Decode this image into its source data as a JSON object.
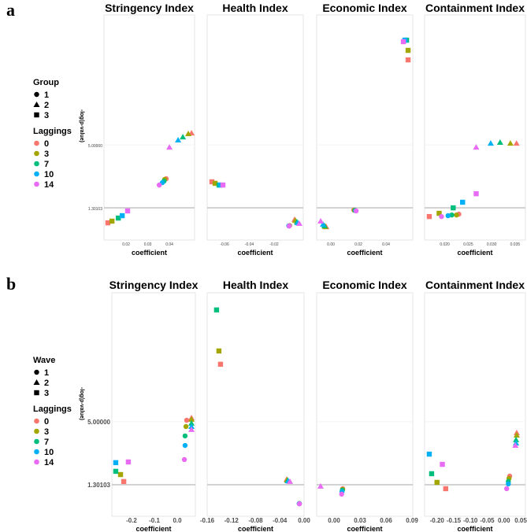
{
  "figure_labels": [
    "a",
    "b"
  ],
  "colors": {
    "0": "#F8766D",
    "3": "#A3A500",
    "7": "#00BF7D",
    "10": "#00B0F6",
    "14": "#E76BF3"
  },
  "shapes": {
    "1": "circle",
    "2": "triangle",
    "3": "square"
  },
  "legends": [
    {
      "shape_title": "Group",
      "shape_items": [
        "1",
        "2",
        "3"
      ],
      "color_title": "Laggings",
      "color_items": [
        "0",
        "3",
        "7",
        "10",
        "14"
      ]
    },
    {
      "shape_title": "Wave",
      "shape_items": [
        "1",
        "2",
        "3"
      ],
      "color_title": "Laggings",
      "color_items": [
        "0",
        "3",
        "7",
        "10",
        "14"
      ]
    }
  ],
  "point_fields": [
    "group",
    "lag",
    "x",
    "y"
  ],
  "chart_data": [
    {
      "type": "scatter",
      "row": 0,
      "title": "Stringency Index",
      "xlabel": "coefficient",
      "ylabel": "-log(p-value)",
      "xlim": [
        0.0098,
        0.0516
      ],
      "ylim": [
        -0.59,
        12.63
      ],
      "xticks": [
        0.02,
        0.03,
        0.04
      ],
      "xtick_labels": [
        "0.02",
        "0.03",
        "0.04"
      ],
      "yticks": [
        1.30103,
        5.0
      ],
      "ytick_labels": [
        "1.30103",
        "5.00000"
      ],
      "hline": 1.30103,
      "points": [
        [
          3,
          0,
          0.0116,
          0.42
        ],
        [
          3,
          3,
          0.0135,
          0.52
        ],
        [
          3,
          7,
          0.0164,
          0.7
        ],
        [
          3,
          10,
          0.0182,
          0.84
        ],
        [
          3,
          14,
          0.0207,
          1.12
        ],
        [
          1,
          0,
          0.0385,
          3.01
        ],
        [
          1,
          3,
          0.0378,
          2.97
        ],
        [
          1,
          7,
          0.0375,
          2.87
        ],
        [
          1,
          10,
          0.0367,
          2.78
        ],
        [
          1,
          14,
          0.0353,
          2.64
        ],
        [
          2,
          0,
          0.0502,
          5.69
        ],
        [
          2,
          3,
          0.0487,
          5.65
        ],
        [
          2,
          7,
          0.0462,
          5.46
        ],
        [
          2,
          10,
          0.044,
          5.28
        ],
        [
          2,
          14,
          0.04,
          4.86
        ]
      ]
    },
    {
      "type": "scatter",
      "row": 0,
      "title": "Health Index",
      "xlabel": "coefficient",
      "xlim": [
        -0.074,
        0.0035
      ],
      "ylim": [
        -0.59,
        12.63
      ],
      "xticks": [
        -0.06,
        -0.04,
        -0.02
      ],
      "xtick_labels": [
        "-0.06",
        "-0.04",
        "-0.02"
      ],
      "hline": 1.30103,
      "points": [
        [
          3,
          0,
          -0.0702,
          2.83
        ],
        [
          3,
          3,
          -0.0676,
          2.74
        ],
        [
          3,
          7,
          -0.0644,
          2.64
        ],
        [
          3,
          10,
          -0.0632,
          2.64
        ],
        [
          3,
          14,
          -0.0613,
          2.64
        ],
        [
          1,
          0,
          -0.0075,
          0.26
        ],
        [
          1,
          3,
          -0.0077,
          0.25
        ],
        [
          1,
          7,
          -0.0079,
          0.24
        ],
        [
          1,
          10,
          -0.0082,
          0.24
        ],
        [
          1,
          14,
          -0.0079,
          0.23
        ],
        [
          2,
          0,
          -0.0035,
          0.61
        ],
        [
          2,
          3,
          -0.0029,
          0.56
        ],
        [
          2,
          7,
          -0.0016,
          0.47
        ],
        [
          2,
          10,
          -0.001,
          0.42
        ],
        [
          2,
          14,
          0.0003,
          0.38
        ]
      ]
    },
    {
      "type": "scatter",
      "row": 0,
      "title": "Economic Index",
      "xlabel": "coefficient",
      "xlim": [
        -0.0103,
        0.0594
      ],
      "ylim": [
        -0.59,
        12.63
      ],
      "xticks": [
        0.0,
        0.02,
        0.04
      ],
      "xtick_labels": [
        "0.00",
        "0.02",
        "0.04"
      ],
      "hline": 1.30103,
      "points": [
        [
          2,
          0,
          -0.0034,
          0.19
        ],
        [
          2,
          3,
          -0.004,
          0.19
        ],
        [
          2,
          7,
          -0.0046,
          0.24
        ],
        [
          2,
          10,
          -0.0057,
          0.33
        ],
        [
          2,
          14,
          -0.0074,
          0.52
        ],
        [
          1,
          0,
          0.0166,
          1.17
        ],
        [
          1,
          3,
          0.017,
          1.16
        ],
        [
          1,
          7,
          0.0175,
          1.15
        ],
        [
          1,
          10,
          0.018,
          1.13
        ],
        [
          1,
          14,
          0.0183,
          1.12
        ],
        [
          3,
          0,
          0.056,
          9.99
        ],
        [
          3,
          3,
          0.056,
          10.55
        ],
        [
          3,
          7,
          0.0549,
          11.15
        ],
        [
          3,
          10,
          0.0537,
          11.15
        ],
        [
          3,
          14,
          0.0526,
          11.06
        ]
      ]
    },
    {
      "type": "scatter",
      "row": 0,
      "title": "Containment Index",
      "xlabel": "coefficient",
      "xlim": [
        0.0157,
        0.0372
      ],
      "ylim": [
        -0.59,
        12.63
      ],
      "xticks": [
        0.02,
        0.025,
        0.03,
        0.035
      ],
      "xtick_labels": [
        "0.020",
        "0.025",
        "0.030",
        "0.035"
      ],
      "hline": 1.30103,
      "points": [
        [
          3,
          0,
          0.0167,
          0.79
        ],
        [
          3,
          3,
          0.0188,
          0.98
        ],
        [
          3,
          7,
          0.0218,
          1.3
        ],
        [
          3,
          10,
          0.0238,
          1.63
        ],
        [
          3,
          14,
          0.0267,
          2.13
        ],
        [
          1,
          0,
          0.023,
          0.93
        ],
        [
          1,
          3,
          0.0225,
          0.88
        ],
        [
          1,
          7,
          0.0215,
          0.88
        ],
        [
          1,
          10,
          0.0207,
          0.84
        ],
        [
          1,
          14,
          0.0193,
          0.79
        ],
        [
          2,
          0,
          0.0353,
          5.09
        ],
        [
          2,
          3,
          0.034,
          5.09
        ],
        [
          2,
          7,
          0.0318,
          5.14
        ],
        [
          2,
          10,
          0.0298,
          5.09
        ],
        [
          2,
          14,
          0.0267,
          4.86
        ]
      ]
    },
    {
      "type": "scatter",
      "row": 1,
      "title": "Stringency Index",
      "xlabel": "coefficient",
      "ylabel": "-log(p-value)",
      "xlim": [
        -0.286,
        0.079
      ],
      "ylim": [
        -0.55,
        12.58
      ],
      "xticks": [
        -0.2,
        -0.1,
        0.0
      ],
      "xtick_labels": [
        "-0.2",
        "-0.1",
        "0.0"
      ],
      "yticks": [
        1.30103,
        5.0
      ],
      "ytick_labels": [
        "1.30103",
        "5.00000"
      ],
      "hline": 1.30103,
      "points": [
        [
          3,
          0,
          -0.234,
          1.49
        ],
        [
          3,
          3,
          -0.248,
          1.9
        ],
        [
          3,
          7,
          -0.269,
          2.09
        ],
        [
          3,
          10,
          -0.269,
          2.6
        ],
        [
          3,
          14,
          -0.214,
          2.64
        ],
        [
          1,
          0,
          0.041,
          5.09
        ],
        [
          1,
          3,
          0.038,
          4.72
        ],
        [
          1,
          7,
          0.034,
          4.17
        ],
        [
          1,
          10,
          0.034,
          3.61
        ],
        [
          1,
          14,
          0.031,
          2.78
        ],
        [
          2,
          0,
          0.062,
          5.23
        ],
        [
          2,
          3,
          0.062,
          5.14
        ],
        [
          2,
          7,
          0.062,
          4.91
        ],
        [
          2,
          10,
          0.062,
          4.72
        ],
        [
          2,
          14,
          0.062,
          4.54
        ]
      ]
    },
    {
      "type": "scatter",
      "row": 1,
      "title": "Health Index",
      "xlabel": "coefficient",
      "xlim": [
        -0.16,
        0.0
      ],
      "ylim": [
        -0.55,
        12.58
      ],
      "xticks": [
        -0.16,
        -0.12,
        -0.08,
        -0.04,
        0.0
      ],
      "xtick_labels": [
        "-0.16",
        "-0.12",
        "-0.08",
        "-0.04",
        "0.00"
      ],
      "hline": 1.30103,
      "points": [
        [
          3,
          0,
          -0.138,
          8.38
        ],
        [
          3,
          3,
          -0.1406,
          9.16
        ],
        [
          3,
          7,
          -0.1445,
          11.57
        ],
        [
          2,
          0,
          -0.0286,
          1.62
        ],
        [
          2,
          3,
          -0.028,
          1.58
        ],
        [
          2,
          7,
          -0.027,
          1.55
        ],
        [
          2,
          10,
          -0.026,
          1.52
        ],
        [
          2,
          14,
          -0.0234,
          1.49
        ],
        [
          1,
          0,
          -0.0078,
          0.2
        ],
        [
          1,
          3,
          -0.0078,
          0.2
        ],
        [
          1,
          7,
          -0.0078,
          0.19
        ],
        [
          1,
          10,
          -0.008,
          0.19
        ],
        [
          1,
          14,
          -0.0076,
          0.18
        ]
      ]
    },
    {
      "type": "scatter",
      "row": 1,
      "title": "Economic Index",
      "xlabel": "coefficient",
      "xlim": [
        -0.02,
        0.0909
      ],
      "ylim": [
        -0.55,
        12.58
      ],
      "xticks": [
        0.0,
        0.03,
        0.06,
        0.09
      ],
      "xtick_labels": [
        "0.00",
        "0.03",
        "0.06",
        "0.09"
      ],
      "hline": 1.30103,
      "points": [
        [
          2,
          14,
          -0.0155,
          1.21
        ],
        [
          1,
          0,
          0.01,
          1.07
        ],
        [
          1,
          3,
          0.01,
          1.02
        ],
        [
          1,
          7,
          0.0096,
          0.98
        ],
        [
          1,
          10,
          0.0092,
          0.89
        ],
        [
          1,
          14,
          0.0088,
          0.75
        ]
      ]
    },
    {
      "type": "scatter",
      "row": 1,
      "title": "Containment Index",
      "xlabel": "coefficient",
      "xlim": [
        -0.237,
        0.064
      ],
      "ylim": [
        -0.55,
        12.58
      ],
      "xticks": [
        -0.2,
        -0.15,
        -0.1,
        -0.05,
        0.0,
        0.05
      ],
      "xtick_labels": [
        "-0.20",
        "-0.15",
        "-0.10",
        "-0.05",
        "0.00",
        "0.05"
      ],
      "hline": 1.30103,
      "points": [
        [
          3,
          0,
          -0.174,
          1.07
        ],
        [
          3,
          3,
          -0.2,
          1.44
        ],
        [
          3,
          7,
          -0.216,
          1.95
        ],
        [
          3,
          10,
          -0.223,
          3.1
        ],
        [
          3,
          14,
          -0.184,
          2.5
        ],
        [
          1,
          0,
          0.017,
          1.81
        ],
        [
          1,
          3,
          0.015,
          1.67
        ],
        [
          1,
          7,
          0.013,
          1.49
        ],
        [
          1,
          10,
          0.013,
          1.35
        ],
        [
          1,
          14,
          0.008,
          1.07
        ],
        [
          2,
          0,
          0.038,
          4.35
        ],
        [
          2,
          3,
          0.038,
          4.21
        ],
        [
          2,
          7,
          0.036,
          3.94
        ],
        [
          2,
          10,
          0.036,
          3.75
        ],
        [
          2,
          14,
          0.034,
          3.61
        ]
      ]
    }
  ]
}
